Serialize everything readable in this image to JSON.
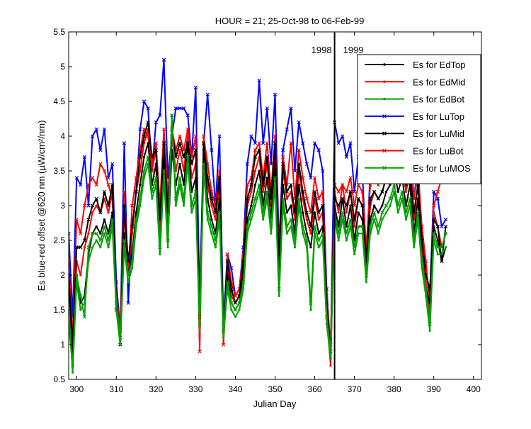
{
  "chart_data": {
    "type": "line",
    "title": "HOUR = 21; 25-Oct-98 to 06-Feb-99",
    "xlabel": "Julian Day",
    "ylabel": "Es blue-red offset @620 nm (µW/cm²/nm)",
    "xlim": [
      298,
      402
    ],
    "ylim": [
      0.5,
      5.5
    ],
    "xticks": [
      300,
      310,
      320,
      330,
      340,
      350,
      360,
      370,
      380,
      390,
      400
    ],
    "yticks": [
      0.5,
      1,
      1.5,
      2,
      2.5,
      3,
      3.5,
      4,
      4.5,
      5,
      5.5
    ],
    "grid": false,
    "legend_position": "top-right",
    "vline": {
      "x": 365,
      "label_left": "1998",
      "label_right": "1999"
    },
    "x": [
      298,
      299,
      300,
      301,
      302,
      303,
      304,
      305,
      306,
      307,
      308,
      309,
      310,
      311,
      312,
      313,
      314,
      315,
      316,
      317,
      318,
      319,
      320,
      321,
      322,
      323,
      324,
      325,
      326,
      327,
      328,
      329,
      330,
      331,
      332,
      333,
      334,
      335,
      336,
      337,
      338,
      339,
      340,
      341,
      342,
      343,
      344,
      345,
      346,
      347,
      348,
      349,
      350,
      351,
      352,
      353,
      354,
      355,
      356,
      357,
      358,
      359,
      360,
      361,
      362,
      363,
      364,
      365,
      366,
      367,
      368,
      369,
      370,
      371,
      372,
      373,
      374,
      375,
      376,
      377,
      378,
      379,
      380,
      381,
      382,
      383,
      384,
      385,
      386,
      387,
      388,
      389,
      390,
      391,
      392,
      393
    ],
    "series": [
      {
        "name": "Es for EdTop",
        "color": "#000000",
        "marker": "dot",
        "values": [
          1.9,
          0.9,
          2.0,
          1.6,
          1.7,
          2.3,
          2.6,
          2.7,
          2.6,
          2.8,
          2.6,
          2.9,
          1.7,
          1.0,
          2.6,
          2.0,
          2.3,
          2.9,
          3.3,
          3.7,
          3.9,
          3.3,
          3.6,
          2.3,
          3.7,
          2.5,
          3.8,
          3.3,
          3.6,
          3.3,
          3.9,
          3.2,
          3.4,
          1.3,
          3.8,
          3.1,
          2.8,
          2.6,
          3.1,
          1.2,
          2.0,
          1.6,
          1.5,
          1.6,
          2.0,
          2.8,
          3.0,
          3.3,
          3.5,
          3.0,
          3.4,
          2.8,
          3.6,
          2.0,
          3.3,
          2.9,
          3.0,
          2.6,
          3.3,
          2.9,
          2.6,
          2.4,
          2.9,
          2.6,
          2.7,
          1.5,
          0.8,
          3.0,
          2.7,
          3.1,
          2.7,
          3.0,
          2.5,
          2.9,
          2.8,
          2.0,
          2.8,
          3.0,
          2.9,
          3.0,
          3.2,
          3.3,
          3.5,
          3.2,
          3.4,
          3.0,
          3.3,
          2.6,
          3.1,
          2.2,
          1.8,
          1.6,
          2.7,
          2.5,
          2.2,
          2.4
        ]
      },
      {
        "name": "Es for EdMid",
        "color": "#ff0000",
        "marker": "dot",
        "values": [
          2.1,
          0.8,
          2.2,
          2.0,
          2.4,
          2.6,
          2.9,
          3.0,
          2.9,
          3.1,
          2.9,
          3.2,
          1.6,
          1.1,
          2.9,
          2.1,
          2.6,
          3.2,
          3.5,
          3.9,
          4.1,
          3.5,
          3.8,
          2.6,
          3.9,
          2.7,
          4.0,
          3.5,
          3.8,
          3.5,
          4.0,
          3.4,
          3.6,
          1.1,
          3.9,
          3.3,
          3.0,
          2.8,
          3.3,
          1.1,
          2.1,
          1.7,
          1.6,
          1.7,
          2.1,
          3.0,
          3.2,
          3.5,
          3.7,
          3.2,
          3.6,
          3.0,
          3.8,
          2.1,
          3.5,
          3.1,
          3.2,
          2.8,
          3.5,
          3.1,
          2.8,
          2.6,
          3.1,
          2.8,
          2.9,
          1.4,
          0.7,
          3.2,
          2.9,
          3.3,
          2.9,
          3.2,
          2.7,
          3.1,
          3.0,
          2.1,
          3.0,
          3.2,
          3.1,
          3.2,
          3.4,
          3.5,
          3.7,
          3.4,
          3.6,
          3.2,
          3.5,
          2.8,
          3.3,
          2.4,
          1.9,
          1.4,
          2.9,
          2.7,
          2.4,
          2.6
        ]
      },
      {
        "name": "Es for EdBot",
        "color": "#00a000",
        "marker": "dot",
        "values": [
          1.5,
          0.6,
          1.9,
          1.5,
          1.6,
          2.2,
          2.4,
          2.5,
          2.4,
          2.6,
          2.4,
          2.7,
          1.5,
          1.0,
          2.4,
          1.9,
          2.1,
          2.7,
          3.0,
          3.4,
          3.6,
          3.1,
          3.3,
          2.3,
          3.4,
          2.4,
          4.3,
          3.0,
          3.3,
          3.0,
          3.6,
          2.9,
          3.1,
          1.2,
          3.5,
          2.8,
          2.6,
          2.4,
          2.8,
          1.1,
          1.8,
          1.5,
          1.4,
          1.5,
          1.8,
          2.6,
          2.8,
          3.0,
          3.2,
          2.8,
          3.1,
          2.6,
          3.3,
          1.7,
          3.0,
          2.6,
          2.7,
          2.4,
          3.0,
          2.6,
          2.4,
          1.5,
          2.6,
          2.4,
          2.5,
          1.3,
          0.8,
          2.8,
          2.5,
          2.8,
          2.5,
          2.7,
          2.3,
          2.6,
          2.6,
          1.9,
          2.6,
          2.8,
          2.6,
          2.8,
          2.9,
          3.0,
          3.2,
          2.9,
          3.1,
          2.8,
          3.0,
          2.4,
          2.8,
          2.1,
          1.7,
          1.2,
          2.5,
          2.3,
          2.3,
          2.4
        ]
      },
      {
        "name": "Es for LuTop",
        "color": "#0000ff",
        "marker": "x",
        "values": [
          2.6,
          1.4,
          3.4,
          3.3,
          3.7,
          3.0,
          4.0,
          4.1,
          3.8,
          4.1,
          3.4,
          3.6,
          1.9,
          1.2,
          3.9,
          1.6,
          2.7,
          3.2,
          4.1,
          4.5,
          4.4,
          3.5,
          4.2,
          4.3,
          5.1,
          3.4,
          4.0,
          4.4,
          4.4,
          4.4,
          4.3,
          3.7,
          4.7,
          1.6,
          3.9,
          4.6,
          3.8,
          3.0,
          4.0,
          1.3,
          2.3,
          2.1,
          1.7,
          1.8,
          2.4,
          3.6,
          4.0,
          3.9,
          4.8,
          3.9,
          4.4,
          3.6,
          4.6,
          2.4,
          3.8,
          4.1,
          4.4,
          3.5,
          4.2,
          3.9,
          3.6,
          3.4,
          3.9,
          3.8,
          3.5,
          1.8,
          0.9,
          4.2,
          3.9,
          4.0,
          3.7,
          3.9,
          3.2,
          3.7,
          3.5,
          2.2,
          3.5,
          3.7,
          3.6,
          3.8,
          4.0,
          3.9,
          4.1,
          3.8,
          4.1,
          3.6,
          3.9,
          3.1,
          3.6,
          2.6,
          2.1,
          1.7,
          3.2,
          3.1,
          2.7,
          2.8
        ]
      },
      {
        "name": "Es for LuMid",
        "color": "#000000",
        "marker": "x",
        "values": [
          2.0,
          1.0,
          2.4,
          2.4,
          2.5,
          2.8,
          3.0,
          3.1,
          2.9,
          3.2,
          3.0,
          3.3,
          1.5,
          1.0,
          3.0,
          2.2,
          2.7,
          3.2,
          3.7,
          4.0,
          4.2,
          3.7,
          3.8,
          2.8,
          3.9,
          2.9,
          4.1,
          3.7,
          3.9,
          3.7,
          3.9,
          3.6,
          3.8,
          1.4,
          3.9,
          3.4,
          3.1,
          2.9,
          3.4,
          1.2,
          2.2,
          1.8,
          1.6,
          1.7,
          2.2,
          3.1,
          3.3,
          3.7,
          3.8,
          3.3,
          3.7,
          3.1,
          3.9,
          2.2,
          3.6,
          3.2,
          3.3,
          2.9,
          3.6,
          3.2,
          2.9,
          2.7,
          3.2,
          2.9,
          3.0,
          1.6,
          0.9,
          3.1,
          3.0,
          3.1,
          3.0,
          3.2,
          2.8,
          3.1,
          3.0,
          2.2,
          3.1,
          3.2,
          3.1,
          3.2,
          3.4,
          3.5,
          3.7,
          3.4,
          3.6,
          3.3,
          3.5,
          2.9,
          3.3,
          2.5,
          2.0,
          1.8,
          2.8,
          2.7,
          2.2,
          2.7
        ]
      },
      {
        "name": "Es for LuBot",
        "color": "#ff0000",
        "marker": "x",
        "values": [
          2.2,
          1.1,
          2.8,
          2.6,
          3.0,
          3.3,
          3.4,
          3.3,
          3.6,
          3.5,
          3.3,
          3.1,
          1.7,
          1.2,
          3.2,
          2.0,
          3.0,
          3.4,
          3.8,
          4.1,
          4.0,
          3.6,
          3.9,
          3.0,
          4.1,
          3.1,
          4.1,
          3.8,
          4.0,
          3.8,
          4.1,
          3.7,
          4.0,
          0.9,
          4.0,
          3.6,
          3.2,
          3.0,
          3.5,
          1.0,
          2.3,
          1.9,
          1.7,
          1.8,
          2.3,
          3.3,
          3.4,
          3.8,
          3.9,
          3.4,
          3.9,
          3.2,
          4.0,
          2.3,
          3.7,
          3.3,
          3.9,
          3.1,
          3.8,
          3.4,
          3.1,
          2.9,
          3.4,
          3.1,
          3.2,
          1.7,
          1.0,
          3.3,
          3.2,
          3.3,
          3.2,
          3.4,
          3.0,
          3.3,
          3.2,
          2.4,
          3.3,
          3.4,
          3.3,
          3.4,
          3.6,
          3.6,
          3.8,
          3.6,
          3.8,
          3.5,
          3.7,
          3.1,
          3.5,
          2.7,
          2.2,
          1.5,
          3.0,
          3.2,
          3.4,
          3.6
        ]
      },
      {
        "name": "Es for LuMOS",
        "color": "#00a000",
        "marker": "x",
        "values": [
          1.3,
          0.7,
          2.0,
          1.7,
          1.4,
          2.4,
          2.6,
          2.6,
          2.5,
          2.7,
          2.5,
          2.8,
          1.6,
          1.1,
          2.5,
          2.0,
          2.2,
          2.8,
          3.1,
          3.5,
          3.7,
          3.2,
          3.4,
          2.4,
          3.5,
          2.5,
          4.3,
          3.1,
          3.4,
          3.1,
          3.7,
          3.0,
          3.2,
          1.3,
          3.6,
          2.9,
          2.7,
          2.5,
          2.9,
          1.2,
          1.9,
          1.6,
          1.5,
          1.6,
          1.9,
          2.7,
          2.9,
          3.1,
          3.3,
          2.9,
          3.2,
          2.7,
          3.4,
          1.8,
          3.1,
          2.7,
          2.8,
          2.5,
          3.1,
          2.7,
          2.5,
          1.6,
          2.7,
          2.5,
          2.6,
          1.4,
          0.9,
          2.9,
          2.6,
          2.9,
          2.6,
          2.8,
          2.4,
          2.7,
          2.7,
          2.0,
          2.7,
          2.9,
          2.7,
          2.9,
          3.0,
          3.1,
          3.3,
          3.0,
          3.2,
          2.9,
          3.1,
          2.5,
          2.9,
          2.2,
          1.8,
          1.3,
          2.6,
          2.4,
          2.4,
          2.6
        ]
      }
    ]
  }
}
